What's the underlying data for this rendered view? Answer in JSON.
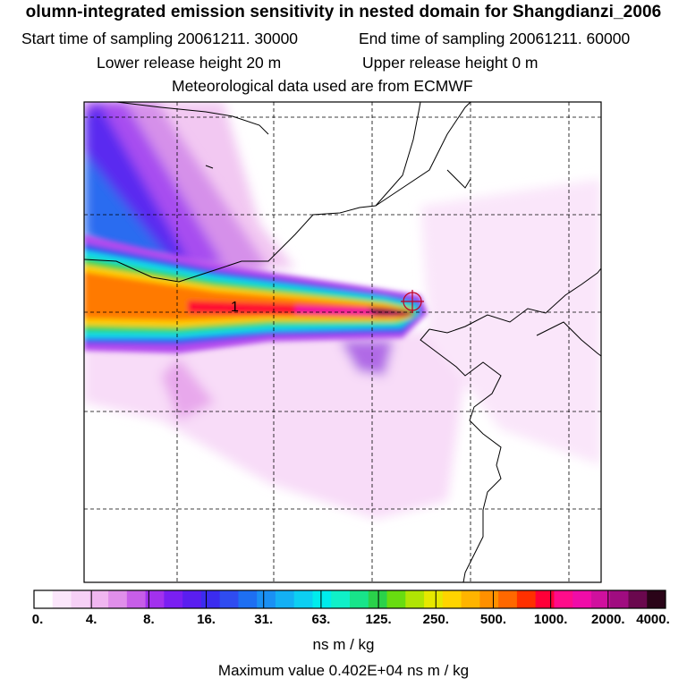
{
  "header": {
    "title": "olumn-integrated emission sensitivity in nested domain for Shangdianzi_2006",
    "start_label": "Start time of sampling 20061211. 30000",
    "end_label": "End time of sampling 20061211. 60000",
    "lower_label": "Lower release height   20 m",
    "upper_label": "Upper release height    0 m",
    "met_label": "Meteorological data used are from ECMWF"
  },
  "map": {
    "release_site_label": "1"
  },
  "colorbar": {
    "tick_labels": [
      "0.",
      "4.",
      "8.",
      "16.",
      "31.",
      "63.",
      "125.",
      "250.",
      "500.",
      "1000.",
      "2000.",
      "4000."
    ],
    "units": "ns m / kg",
    "max_value": "Maximum value  0.402E+04 ns m / kg",
    "colors": [
      "#ffffff",
      "#fbe6fb",
      "#f6d0f6",
      "#f0b6f0",
      "#e08fea",
      "#c75ee8",
      "#a231ee",
      "#7a1ff2",
      "#5a1ef0",
      "#3b2cef",
      "#2f4cf0",
      "#1e6ff2",
      "#1a90f4",
      "#14b0f4",
      "#0ccff2",
      "#00ecec",
      "#10f0c8",
      "#18e48a",
      "#2ad24a",
      "#68dc10",
      "#b0e404",
      "#e6e800",
      "#ffd400",
      "#ffb400",
      "#ff9000",
      "#ff6800",
      "#ff3000",
      "#ff0038",
      "#ff0c8a",
      "#f00ca8",
      "#d0109e",
      "#a00c80",
      "#6a084e",
      "#2a0418"
    ]
  }
}
